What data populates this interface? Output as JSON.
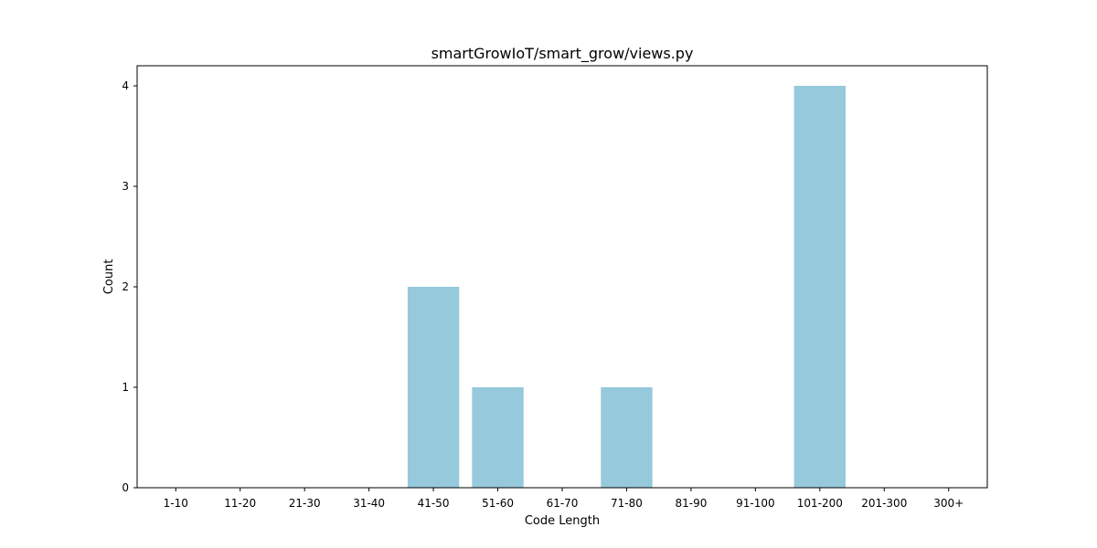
{
  "chart_data": {
    "type": "bar",
    "title": "smartGrowIoT/smart_grow/views.py",
    "xlabel": "Code Length",
    "ylabel": "Count",
    "categories": [
      "1-10",
      "11-20",
      "21-30",
      "31-40",
      "41-50",
      "51-60",
      "61-70",
      "71-80",
      "81-90",
      "91-100",
      "101-200",
      "201-300",
      "300+"
    ],
    "values": [
      0,
      0,
      0,
      0,
      2,
      1,
      0,
      1,
      0,
      0,
      4,
      0,
      0
    ],
    "ylim": [
      0,
      4.2
    ],
    "yticks": [
      0,
      1,
      2,
      3,
      4
    ],
    "bar_color": "#96c9dc",
    "grid": false,
    "legend": "none"
  }
}
